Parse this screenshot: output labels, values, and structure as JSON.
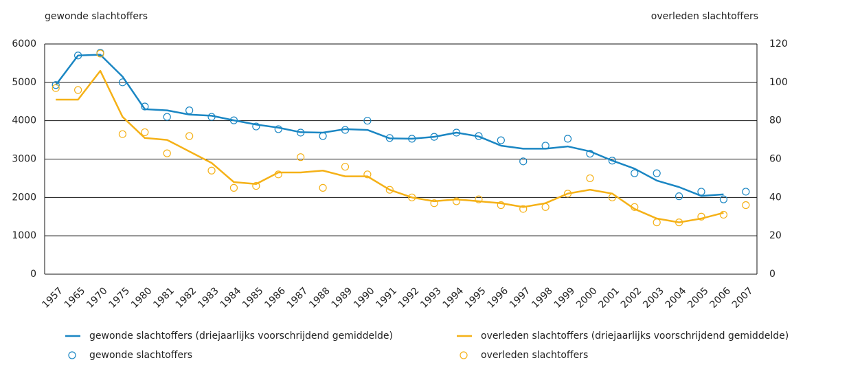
{
  "chart_data": {
    "type": "line",
    "y_label": "gewonde slachtoffers",
    "y2_label": "overleden slachtoffers",
    "categories": [
      "1957",
      "1965",
      "1970",
      "1975",
      "1980",
      "1981",
      "1982",
      "1983",
      "1984",
      "1985",
      "1986",
      "1987",
      "1988",
      "1989",
      "1990",
      "1991",
      "1992",
      "1993",
      "1994",
      "1995",
      "1996",
      "1997",
      "1998",
      "1999",
      "2000",
      "2001",
      "2002",
      "2003",
      "2004",
      "2005",
      "2006",
      "2007"
    ],
    "ylim": [
      0,
      6000
    ],
    "yticks": [
      0,
      1000,
      2000,
      3000,
      4000,
      5000,
      6000
    ],
    "y2lim": [
      0,
      120
    ],
    "y2ticks": [
      0,
      20,
      40,
      60,
      80,
      100,
      120
    ],
    "grid": true,
    "series": [
      {
        "name": "gewonde slachtoffers (driejaarlijks voorschrijdend gemiddelde)",
        "color": "#1a86c3",
        "marker": "line",
        "values": [
          4930,
          5700,
          5720,
          5150,
          4300,
          4270,
          4160,
          4130,
          4010,
          3900,
          3820,
          3700,
          3690,
          3780,
          3760,
          3540,
          3530,
          3580,
          3690,
          3590,
          3350,
          3270,
          3270,
          3330,
          3200,
          2960,
          2750,
          2440,
          2270,
          2040,
          2080,
          null
        ]
      },
      {
        "name": "overleden slachtoffers (driejaarlijks voorschrijdend gemiddelde)",
        "color": "#f5b117",
        "marker": "line",
        "axis": "y2",
        "values": [
          91,
          91,
          106,
          82,
          71,
          70,
          64,
          58,
          48,
          47,
          53,
          53,
          54,
          51,
          51,
          44,
          40,
          38,
          39,
          38,
          37,
          35,
          37,
          42,
          44,
          42,
          34,
          29,
          27,
          29,
          32,
          null
        ]
      },
      {
        "name": "gewonde slachtoffers",
        "color": "#1a86c3",
        "marker": "circle",
        "values": [
          4930,
          5700,
          5770,
          5000,
          4370,
          4100,
          4270,
          4100,
          4010,
          3850,
          3780,
          3690,
          3600,
          3760,
          4000,
          3550,
          3530,
          3580,
          3690,
          3600,
          3490,
          2940,
          3350,
          3530,
          3140,
          2960,
          2630,
          2630,
          2030,
          2150,
          1950,
          2150
        ]
      },
      {
        "name": "overleden slachtoffers",
        "color": "#f5b117",
        "marker": "circle",
        "axis": "y2",
        "values": [
          97,
          96,
          115,
          73,
          74,
          63,
          72,
          54,
          45,
          46,
          52,
          61,
          45,
          56,
          52,
          44,
          40,
          37,
          38,
          39,
          36,
          34,
          35,
          42,
          50,
          40,
          35,
          27,
          27,
          30,
          31,
          36
        ]
      }
    ]
  }
}
